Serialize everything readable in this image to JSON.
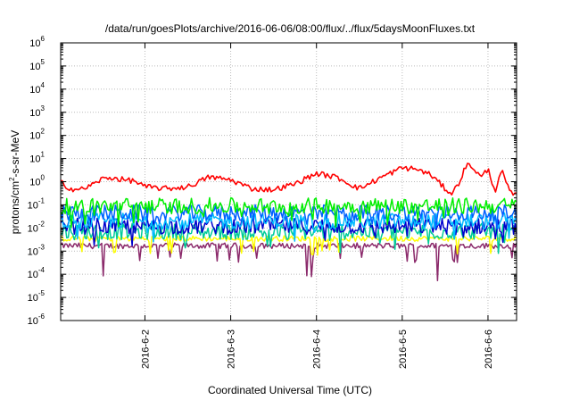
{
  "chart_data": {
    "type": "line",
    "title": "/data/run/goesPlots/archive/2016-06-06/08:00/flux/../flux/5daysMoonFluxes.txt",
    "xlabel": "Coordinated Universal Time (UTC)",
    "ylabel": "protons/cm2-s-sr-MeV",
    "ylabel_parts": {
      "pre": "protons/cm",
      "sup": "2",
      "post": "-s-sr-MeV"
    },
    "yscale": "log",
    "ylim": [
      1e-06,
      1000000.0
    ],
    "xlim": [
      "2016-06-01T00:25",
      "2016-06-06T08:00"
    ],
    "grid": true,
    "y_ticks": [
      {
        "base": "10",
        "exp": "-6",
        "value": 1e-06
      },
      {
        "base": "10",
        "exp": "-5",
        "value": 1e-05
      },
      {
        "base": "10",
        "exp": "-4",
        "value": 0.0001
      },
      {
        "base": "10",
        "exp": "-3",
        "value": 0.001
      },
      {
        "base": "10",
        "exp": "-2",
        "value": 0.01
      },
      {
        "base": "10",
        "exp": "-1",
        "value": 0.1
      },
      {
        "base": "10",
        "exp": "0",
        "value": 1
      },
      {
        "base": "10",
        "exp": "1",
        "value": 10
      },
      {
        "base": "10",
        "exp": "2",
        "value": 100
      },
      {
        "base": "10",
        "exp": "3",
        "value": 1000
      },
      {
        "base": "10",
        "exp": "4",
        "value": 10000
      },
      {
        "base": "10",
        "exp": "5",
        "value": 100000
      },
      {
        "base": "10",
        "exp": "6",
        "value": 1000000
      }
    ],
    "x_ticks": [
      {
        "label": "2016-6-2",
        "date": "2016-06-02T00:00"
      },
      {
        "label": "2016-6-3",
        "date": "2016-06-03T00:00"
      },
      {
        "label": "2016-6-4",
        "date": "2016-06-04T00:00"
      },
      {
        "label": "2016-6-5",
        "date": "2016-06-05T00:00"
      },
      {
        "label": "2016-6-6",
        "date": "2016-06-06T00:00"
      }
    ],
    "series": [
      {
        "color": "#ff0000",
        "x": [
          "2016-06-01T00:25",
          "2016-06-01T03:00",
          "2016-06-01T06:00",
          "2016-06-01T09:00",
          "2016-06-01T12:00",
          "2016-06-01T15:00",
          "2016-06-01T18:00",
          "2016-06-01T21:00",
          "2016-06-02T00:00",
          "2016-06-02T06:00",
          "2016-06-02T12:00",
          "2016-06-02T18:00",
          "2016-06-03T00:00",
          "2016-06-03T06:00",
          "2016-06-03T12:00",
          "2016-06-03T18:00",
          "2016-06-04T00:00",
          "2016-06-04T06:00",
          "2016-06-04T12:00",
          "2016-06-04T18:00",
          "2016-06-05T00:00",
          "2016-06-05T04:00",
          "2016-06-05T08:00",
          "2016-06-05T12:00",
          "2016-06-05T14:00",
          "2016-06-05T16:00",
          "2016-06-05T18:00",
          "2016-06-05T20:00",
          "2016-06-05T22:00",
          "2016-06-06T00:00",
          "2016-06-06T02:00",
          "2016-06-06T04:00",
          "2016-06-06T06:00",
          "2016-06-06T08:00"
        ],
        "values": [
          1.0,
          0.5,
          0.45,
          0.7,
          1.3,
          1.5,
          1.2,
          1.1,
          0.6,
          0.5,
          0.6,
          1.6,
          1.2,
          0.5,
          0.45,
          0.8,
          2.3,
          1.5,
          0.5,
          1.5,
          4.0,
          3.5,
          2.0,
          0.5,
          0.3,
          1.0,
          5.5,
          4.0,
          1.5,
          3.5,
          0.4,
          3.0,
          0.35,
          0.25
        ]
      },
      {
        "color": "#00ee00",
        "x": [
          "2016-06-01T00:25",
          "2016-06-06T08:00"
        ],
        "values": [
          0.09,
          0.09
        ]
      },
      {
        "color": "#0060ff",
        "x": [
          "2016-06-01T00:25",
          "2016-06-06T08:00"
        ],
        "values": [
          0.045,
          0.045
        ]
      },
      {
        "color": "#00bbff",
        "x": [
          "2016-06-01T00:25",
          "2016-06-06T08:00"
        ],
        "values": [
          0.02,
          0.02
        ]
      },
      {
        "color": "#0000cc",
        "x": [
          "2016-06-01T00:25",
          "2016-06-06T08:00"
        ],
        "values": [
          0.012,
          0.012
        ]
      },
      {
        "color": "#00cc99",
        "x": [
          "2016-06-01T00:25",
          "2016-06-06T08:00"
        ],
        "values": [
          0.007,
          0.007
        ]
      },
      {
        "color": "#ffff00",
        "x": [
          "2016-06-01T00:25",
          "2016-06-06T08:00"
        ],
        "values": [
          0.0035,
          0.0035
        ]
      },
      {
        "color": "#8b2a6b",
        "x": [
          "2016-06-01T00:25",
          "2016-06-06T08:00"
        ],
        "values": [
          0.0017,
          0.0017
        ]
      }
    ]
  }
}
